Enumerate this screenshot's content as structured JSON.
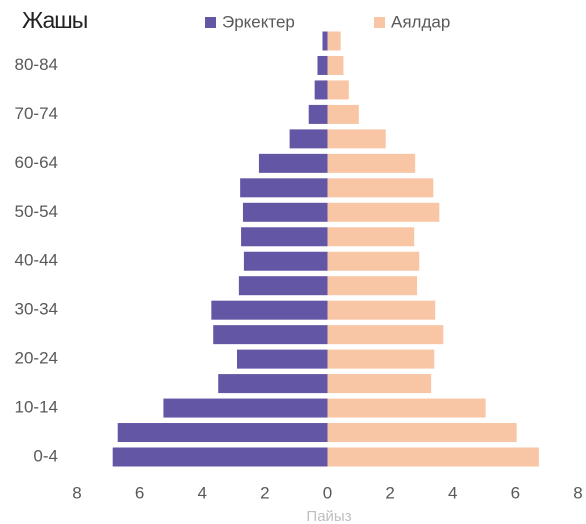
{
  "chart_data": {
    "type": "pyramid",
    "title": "Жашы",
    "x_label": "Пайыз",
    "categories": [
      "0-4",
      null,
      "10-14",
      null,
      "20-24",
      null,
      "30-34",
      null,
      "40-44",
      null,
      "50-54",
      null,
      "60-64",
      null,
      "70-74",
      null,
      "80-84",
      null
    ],
    "series": [
      {
        "name": "Эркектер",
        "color": "#6356a5",
        "values": [
          -6.86,
          -6.7,
          -5.24,
          -3.49,
          -2.89,
          -3.65,
          -3.71,
          -2.83,
          -2.67,
          -2.76,
          -2.7,
          -2.79,
          -2.19,
          -1.21,
          -0.6,
          -0.41,
          -0.32,
          -0.16
        ]
      },
      {
        "name": "Аялдар",
        "color": "#f8c6a4",
        "values": [
          6.75,
          6.04,
          5.05,
          3.31,
          3.41,
          3.7,
          3.44,
          2.86,
          2.93,
          2.77,
          3.57,
          3.38,
          2.8,
          1.86,
          1.0,
          0.68,
          0.51,
          0.42
        ]
      }
    ],
    "xlim": [
      -8,
      8
    ],
    "xticks": [
      {
        "value": -8,
        "label": "8"
      },
      {
        "value": -6,
        "label": "6"
      },
      {
        "value": -4,
        "label": "4"
      },
      {
        "value": -2,
        "label": "2"
      },
      0,
      2,
      4,
      6,
      8
    ],
    "legend": "top"
  }
}
